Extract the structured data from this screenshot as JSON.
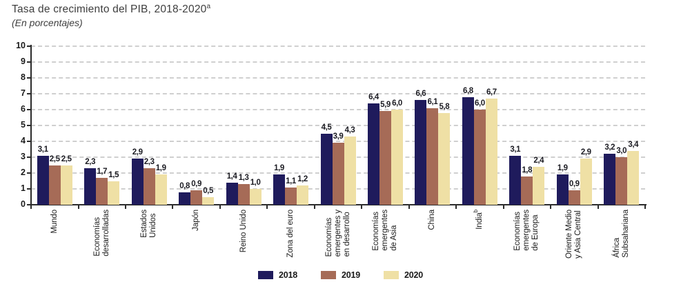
{
  "chart_data": {
    "type": "bar",
    "title": "Tasa de crecimiento del PIB, 2018-2020",
    "title_superscript": "a",
    "subtitle": "(En porcentajes)",
    "ylim": [
      0,
      10
    ],
    "yticks": [
      0,
      1,
      2,
      3,
      4,
      5,
      6,
      7,
      8,
      9,
      10
    ],
    "ytick_step": 1,
    "grid": "dashed-horizontal",
    "legend_position": "bottom-center",
    "decimal_separator": ",",
    "categories": [
      {
        "lines": [
          "Mundo"
        ]
      },
      {
        "lines": [
          "Economías",
          "desarrolladas"
        ]
      },
      {
        "lines": [
          "Estados",
          "Unidos"
        ]
      },
      {
        "lines": [
          "Japón"
        ]
      },
      {
        "lines": [
          "Reino Unido"
        ]
      },
      {
        "lines": [
          "Zona del euro"
        ]
      },
      {
        "lines": [
          "Economías",
          "emergentes y",
          "en desarrollo"
        ]
      },
      {
        "lines": [
          "Economías",
          "emergentes",
          "de Asia"
        ]
      },
      {
        "lines": [
          "China"
        ]
      },
      {
        "lines": [
          "India"
        ],
        "superscript": "b"
      },
      {
        "lines": [
          "Economías",
          "emergentes",
          "de Europa"
        ]
      },
      {
        "lines": [
          "Oriente Medio",
          "y Asia Central"
        ]
      },
      {
        "lines": [
          "África",
          "Subsahariana"
        ]
      }
    ],
    "series": [
      {
        "name": "2018",
        "color": "#1f1b5c",
        "values": [
          3.1,
          2.3,
          2.9,
          0.8,
          1.4,
          1.9,
          4.5,
          6.4,
          6.6,
          6.8,
          3.1,
          1.9,
          3.2
        ]
      },
      {
        "name": "2019",
        "color": "#a66b57",
        "values": [
          2.5,
          1.7,
          2.3,
          0.9,
          1.3,
          1.1,
          3.9,
          5.9,
          6.1,
          6.0,
          1.8,
          0.9,
          3.0
        ]
      },
      {
        "name": "2020",
        "color": "#efe0a5",
        "values": [
          2.5,
          1.5,
          1.9,
          0.5,
          1.0,
          1.2,
          4.3,
          6.0,
          5.8,
          6.7,
          2.4,
          2.9,
          3.4
        ]
      }
    ],
    "style": {
      "axis_color": "#2b2b2b",
      "grid_color": "#cfcfcf",
      "text_color": "#1a1a1a",
      "title_color": "#3e3e3e"
    }
  }
}
